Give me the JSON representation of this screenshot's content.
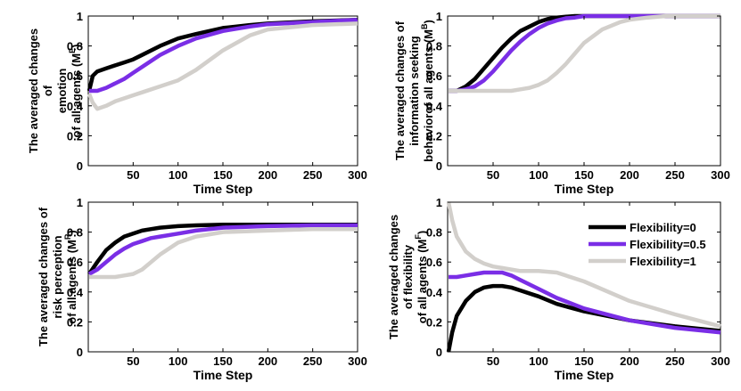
{
  "colors": {
    "f0": "#000000",
    "f05": "#7a2ee6",
    "f1": "#d2cfcb"
  },
  "legend": {
    "panel": 3,
    "items": [
      {
        "label": "Flexibility=0",
        "color": "#000000"
      },
      {
        "label": "Flexibility=0.5",
        "color": "#7a2ee6"
      },
      {
        "label": "Flexibility=1",
        "color": "#d2cfcb"
      }
    ]
  },
  "chart_data": [
    {
      "type": "line",
      "xlabel": "Time Step",
      "ylabel_lines": [
        "The averaged changes",
        "of",
        "emotion",
        "of all agents (M",
        "E",
        ")"
      ],
      "xlim": [
        0,
        300
      ],
      "ylim": [
        0,
        1
      ],
      "xticks": [
        50,
        100,
        150,
        200,
        250,
        300
      ],
      "yticks": [
        0,
        0.2,
        0.4,
        0.6,
        0.8,
        1
      ],
      "ytick_labels": [
        "0",
        "0.2",
        "0.4",
        "0.6",
        "0.8",
        "1"
      ],
      "x": [
        1,
        5,
        10,
        20,
        30,
        40,
        50,
        60,
        80,
        100,
        120,
        150,
        180,
        200,
        250,
        300
      ],
      "series": [
        {
          "color": "#000000",
          "values": [
            0.5,
            0.6,
            0.63,
            0.65,
            0.67,
            0.69,
            0.71,
            0.74,
            0.8,
            0.85,
            0.88,
            0.92,
            0.94,
            0.95,
            0.965,
            0.975
          ]
        },
        {
          "color": "#7a2ee6",
          "values": [
            0.5,
            0.5,
            0.5,
            0.52,
            0.55,
            0.58,
            0.62,
            0.66,
            0.74,
            0.8,
            0.85,
            0.9,
            0.93,
            0.945,
            0.96,
            0.975
          ]
        },
        {
          "color": "#d2cfcb",
          "values": [
            0.48,
            0.42,
            0.38,
            0.4,
            0.43,
            0.45,
            0.47,
            0.49,
            0.53,
            0.57,
            0.64,
            0.77,
            0.87,
            0.91,
            0.94,
            0.95
          ]
        }
      ]
    },
    {
      "type": "line",
      "xlabel": "Time Step",
      "ylabel_lines": [
        "The averaged changes of",
        "information seeking",
        "behaviorof all agents (M",
        "B",
        ")"
      ],
      "xlim": [
        0,
        300
      ],
      "ylim": [
        0,
        1
      ],
      "xticks": [
        50,
        100,
        150,
        200,
        250,
        300
      ],
      "yticks": [
        0,
        0.2,
        0.4,
        0.6,
        0.8,
        1
      ],
      "ytick_labels": [
        "0",
        "0.2",
        "0.4",
        "0.6",
        "0.8",
        "1"
      ],
      "x": [
        1,
        10,
        20,
        30,
        40,
        50,
        60,
        70,
        80,
        90,
        100,
        110,
        120,
        130,
        140,
        150,
        170,
        190,
        200,
        220,
        240,
        260,
        300
      ],
      "series": [
        {
          "color": "#000000",
          "values": [
            0.5,
            0.5,
            0.53,
            0.58,
            0.65,
            0.72,
            0.79,
            0.85,
            0.9,
            0.93,
            0.96,
            0.98,
            0.99,
            0.995,
            1,
            1,
            1,
            1,
            1,
            1,
            1,
            1,
            1
          ]
        },
        {
          "color": "#7a2ee6",
          "values": [
            0.5,
            0.5,
            0.51,
            0.53,
            0.57,
            0.63,
            0.7,
            0.77,
            0.83,
            0.88,
            0.92,
            0.95,
            0.97,
            0.985,
            0.99,
            1,
            1,
            1,
            1,
            1,
            1,
            1,
            1
          ]
        },
        {
          "color": "#d2cfcb",
          "values": [
            0.5,
            0.5,
            0.5,
            0.5,
            0.5,
            0.5,
            0.5,
            0.5,
            0.51,
            0.52,
            0.54,
            0.57,
            0.62,
            0.68,
            0.75,
            0.82,
            0.91,
            0.96,
            0.975,
            0.99,
            1,
            1,
            1
          ]
        }
      ]
    },
    {
      "type": "line",
      "xlabel": "Time Step",
      "ylabel_lines": [
        "The averaged changes of",
        "risk perception",
        "of all agents (M",
        "R",
        ")"
      ],
      "xlim": [
        0,
        300
      ],
      "ylim": [
        0,
        1
      ],
      "xticks": [
        50,
        100,
        150,
        200,
        250,
        300
      ],
      "yticks": [
        0,
        0.2,
        0.4,
        0.6,
        0.8,
        1
      ],
      "ytick_labels": [
        "0",
        "0.2",
        "0.4",
        "0.6",
        "0.8",
        "1"
      ],
      "x": [
        1,
        10,
        20,
        30,
        40,
        50,
        60,
        70,
        80,
        100,
        120,
        150,
        200,
        250,
        300
      ],
      "series": [
        {
          "color": "#000000",
          "values": [
            0.52,
            0.6,
            0.68,
            0.73,
            0.77,
            0.79,
            0.81,
            0.82,
            0.83,
            0.84,
            0.845,
            0.85,
            0.85,
            0.85,
            0.85
          ]
        },
        {
          "color": "#7a2ee6",
          "values": [
            0.52,
            0.55,
            0.6,
            0.65,
            0.69,
            0.72,
            0.74,
            0.76,
            0.77,
            0.79,
            0.81,
            0.83,
            0.84,
            0.845,
            0.845
          ]
        },
        {
          "color": "#d2cfcb",
          "values": [
            0.5,
            0.5,
            0.5,
            0.5,
            0.51,
            0.52,
            0.55,
            0.6,
            0.65,
            0.73,
            0.77,
            0.8,
            0.81,
            0.82,
            0.82
          ]
        }
      ]
    },
    {
      "type": "line",
      "xlabel": "Time Step",
      "ylabel_lines": [
        "The averaged changes",
        "of flexibility",
        "of all agents (M",
        "F",
        ")"
      ],
      "xlim": [
        0,
        300
      ],
      "ylim": [
        0,
        1
      ],
      "xticks": [
        50,
        100,
        150,
        200,
        250,
        300
      ],
      "yticks": [
        0,
        0.2,
        0.4,
        0.6,
        0.8,
        1
      ],
      "ytick_labels": [
        "0",
        "0.2",
        "0.4",
        "0.6",
        "0.8",
        "1"
      ],
      "x": [
        1,
        5,
        10,
        20,
        30,
        40,
        50,
        60,
        70,
        80,
        100,
        120,
        150,
        200,
        250,
        300
      ],
      "series": [
        {
          "color": "#000000",
          "values": [
            0.0,
            0.13,
            0.24,
            0.34,
            0.4,
            0.43,
            0.44,
            0.44,
            0.43,
            0.41,
            0.37,
            0.32,
            0.27,
            0.21,
            0.17,
            0.14
          ]
        },
        {
          "color": "#7a2ee6",
          "values": [
            0.5,
            0.5,
            0.5,
            0.51,
            0.52,
            0.53,
            0.53,
            0.53,
            0.51,
            0.48,
            0.42,
            0.36,
            0.29,
            0.21,
            0.16,
            0.13
          ]
        },
        {
          "color": "#d2cfcb",
          "values": [
            1.0,
            0.88,
            0.77,
            0.67,
            0.62,
            0.59,
            0.57,
            0.56,
            0.55,
            0.54,
            0.54,
            0.53,
            0.47,
            0.34,
            0.25,
            0.17
          ]
        }
      ]
    }
  ]
}
